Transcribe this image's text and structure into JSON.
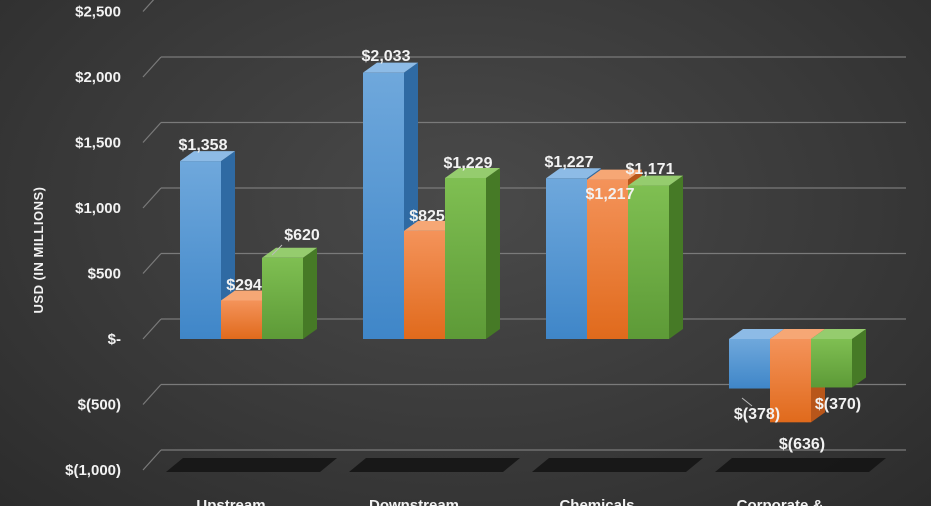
{
  "chart_data": {
    "type": "bar",
    "title": "",
    "xlabel": "",
    "ylabel": "USD (IN MILLIONS)",
    "categories": [
      "Upstream",
      "Downstream",
      "Chemicals",
      "Corporate &"
    ],
    "series": [
      {
        "color": "#5b9bd5",
        "values": [
          1358,
          2033,
          1227,
          -378
        ]
      },
      {
        "color": "#ed7d31",
        "values": [
          294,
          825,
          1217,
          -636
        ]
      },
      {
        "color": "#70ad47",
        "values": [
          620,
          1229,
          1171,
          -370
        ]
      }
    ],
    "data_labels": [
      [
        "$1,358",
        "$2,033",
        "$1,227",
        "$(378)"
      ],
      [
        "$294",
        "$825",
        "$1,217",
        "$(636)"
      ],
      [
        "$620",
        "$1,229",
        "$1,171",
        "$(370)"
      ]
    ],
    "y_ticks": [
      {
        "value": 2500,
        "label": "$2,500"
      },
      {
        "value": 2000,
        "label": "$2,000"
      },
      {
        "value": 1500,
        "label": "$1,500"
      },
      {
        "value": 1000,
        "label": "$1,000"
      },
      {
        "value": 500,
        "label": "$500"
      },
      {
        "value": 0,
        "label": "$-"
      },
      {
        "value": -500,
        "label": "$(500)"
      },
      {
        "value": -1000,
        "label": "$(1,000)"
      }
    ],
    "ylim": [
      -1000,
      2500
    ],
    "grid": true,
    "legend": "none",
    "style": "3d-clustered-column"
  }
}
